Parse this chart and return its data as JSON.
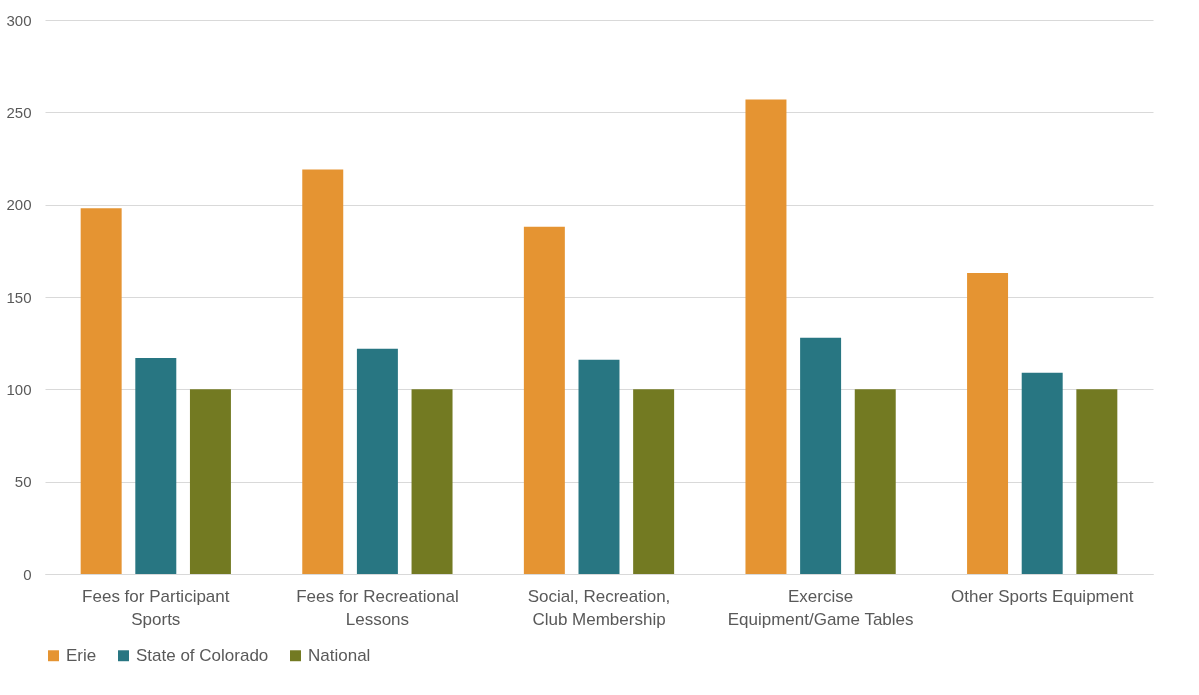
{
  "chart_data": {
    "type": "bar",
    "categories": [
      "Fees for Participant Sports",
      "Fees for Recreational Lessons",
      "Social, Recreation, Club Membership",
      "Exercise Equipment/Game Tables",
      "Other Sports Equipment"
    ],
    "series": [
      {
        "name": "Erie",
        "color": "#e59432",
        "values": [
          198,
          219,
          188,
          257,
          163
        ]
      },
      {
        "name": "State of Colorado",
        "color": "#287682",
        "values": [
          117,
          122,
          116,
          128,
          109
        ]
      },
      {
        "name": "National",
        "color": "#737a22",
        "values": [
          100,
          100,
          100,
          100,
          100
        ]
      }
    ],
    "ylim": [
      0,
      300
    ],
    "yticks": [
      0,
      50,
      100,
      150,
      200,
      250,
      300
    ],
    "grid": "y",
    "legend": "bottom"
  }
}
